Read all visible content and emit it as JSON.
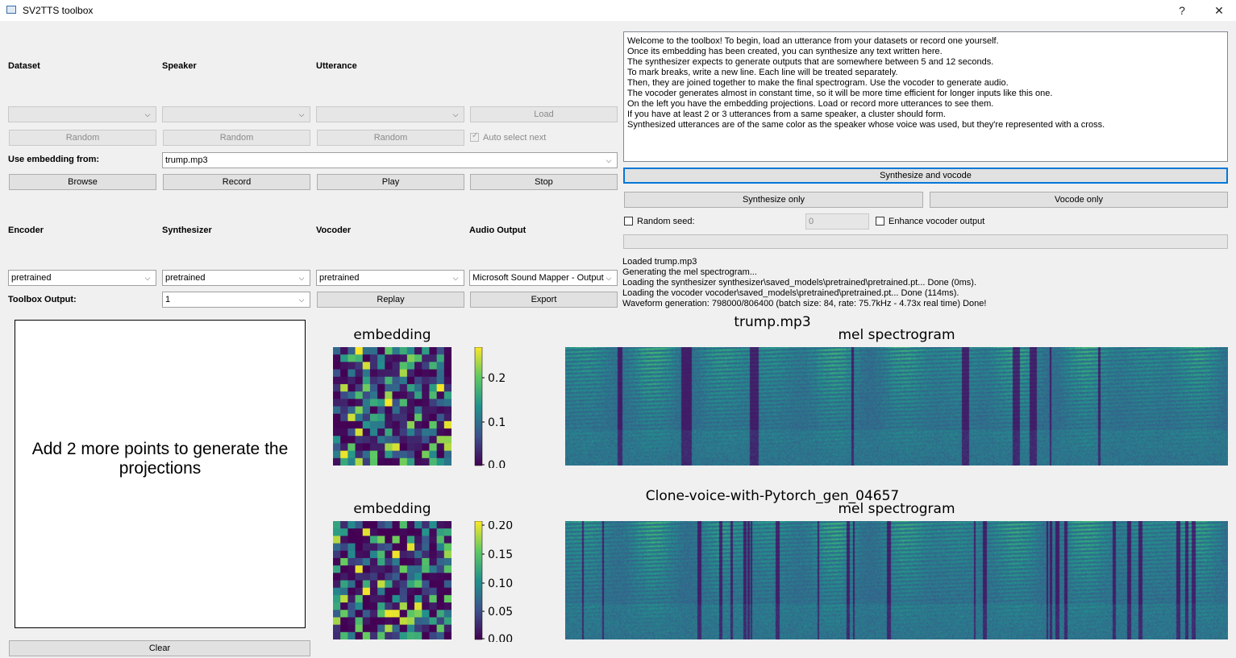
{
  "window": {
    "title": "SV2TTS toolbox",
    "help": "?",
    "close": "✕"
  },
  "source": {
    "dataset_label": "Dataset",
    "speaker_label": "Speaker",
    "utterance_label": "Utterance",
    "load": "Load",
    "random": "Random",
    "auto_select_next": "Auto select next",
    "use_embedding_label": "Use embedding from:",
    "use_embedding_value": "trump.mp3",
    "browse": "Browse",
    "record": "Record",
    "play": "Play",
    "stop": "Stop"
  },
  "models": {
    "encoder_label": "Encoder",
    "synthesizer_label": "Synthesizer",
    "vocoder_label": "Vocoder",
    "audio_output_label": "Audio Output",
    "encoder_value": "pretrained",
    "synthesizer_value": "pretrained",
    "vocoder_value": "pretrained",
    "audio_output_value": "Microsoft Sound Mapper - Output",
    "toolbox_output_label": "Toolbox Output:",
    "toolbox_output_value": "1",
    "replay": "Replay",
    "export": "Export"
  },
  "text_input": {
    "lines": [
      "Welcome to the toolbox! To begin, load an utterance from your datasets or record one yourself.",
      "Once its embedding has been created, you can synthesize any text written here.",
      "The synthesizer expects to generate outputs that are somewhere between 5 and 12 seconds.",
      "To mark breaks, write a new line. Each line will be treated separately.",
      "Then, they are joined together to make the final spectrogram. Use the vocoder to generate audio.",
      "The vocoder generates almost in constant time, so it will be more time efficient for longer inputs like this one.",
      "On the left you have the embedding projections. Load or record more utterances to see them.",
      "If you have at least 2 or 3 utterances from a same speaker, a cluster should form.",
      "Synthesized utterances are of the same color as the speaker whose voice was used, but they're represented with a cross."
    ]
  },
  "generation": {
    "synthesize_and_vocode": "Synthesize and vocode",
    "synthesize_only": "Synthesize only",
    "vocode_only": "Vocode only",
    "random_seed_label": "Random seed:",
    "random_seed_value": "0",
    "enhance_label": "Enhance vocoder output",
    "progress": 0
  },
  "log": {
    "lines": [
      "Loaded trump.mp3",
      "Generating the mel spectrogram...",
      "Loading the synthesizer synthesizer\\saved_models\\pretrained\\pretrained.pt... Done (0ms).",
      "Loading the vocoder vocoder\\saved_models\\pretrained\\pretrained.pt... Done (114ms).",
      "Waveform generation: 798000/806400 (batch size: 84, rate: 75.7kHz - 4.73x real time) Done!"
    ]
  },
  "projections": {
    "message": "Add 2 more points to generate the projections",
    "clear": "Clear"
  },
  "plots": {
    "top": {
      "embedding_title": "embedding",
      "utterance_name": "trump.mp3",
      "spec_title": "mel spectrogram",
      "colorbar_ticks": [
        "0.2",
        "0.1",
        "0.0"
      ]
    },
    "bottom": {
      "embedding_title": "embedding",
      "utterance_name": "Clone-voice-with-Pytorch_gen_04657",
      "spec_title": "mel spectrogram",
      "colorbar_ticks": [
        "0.20",
        "0.15",
        "0.10",
        "0.05",
        "0.00"
      ]
    }
  }
}
